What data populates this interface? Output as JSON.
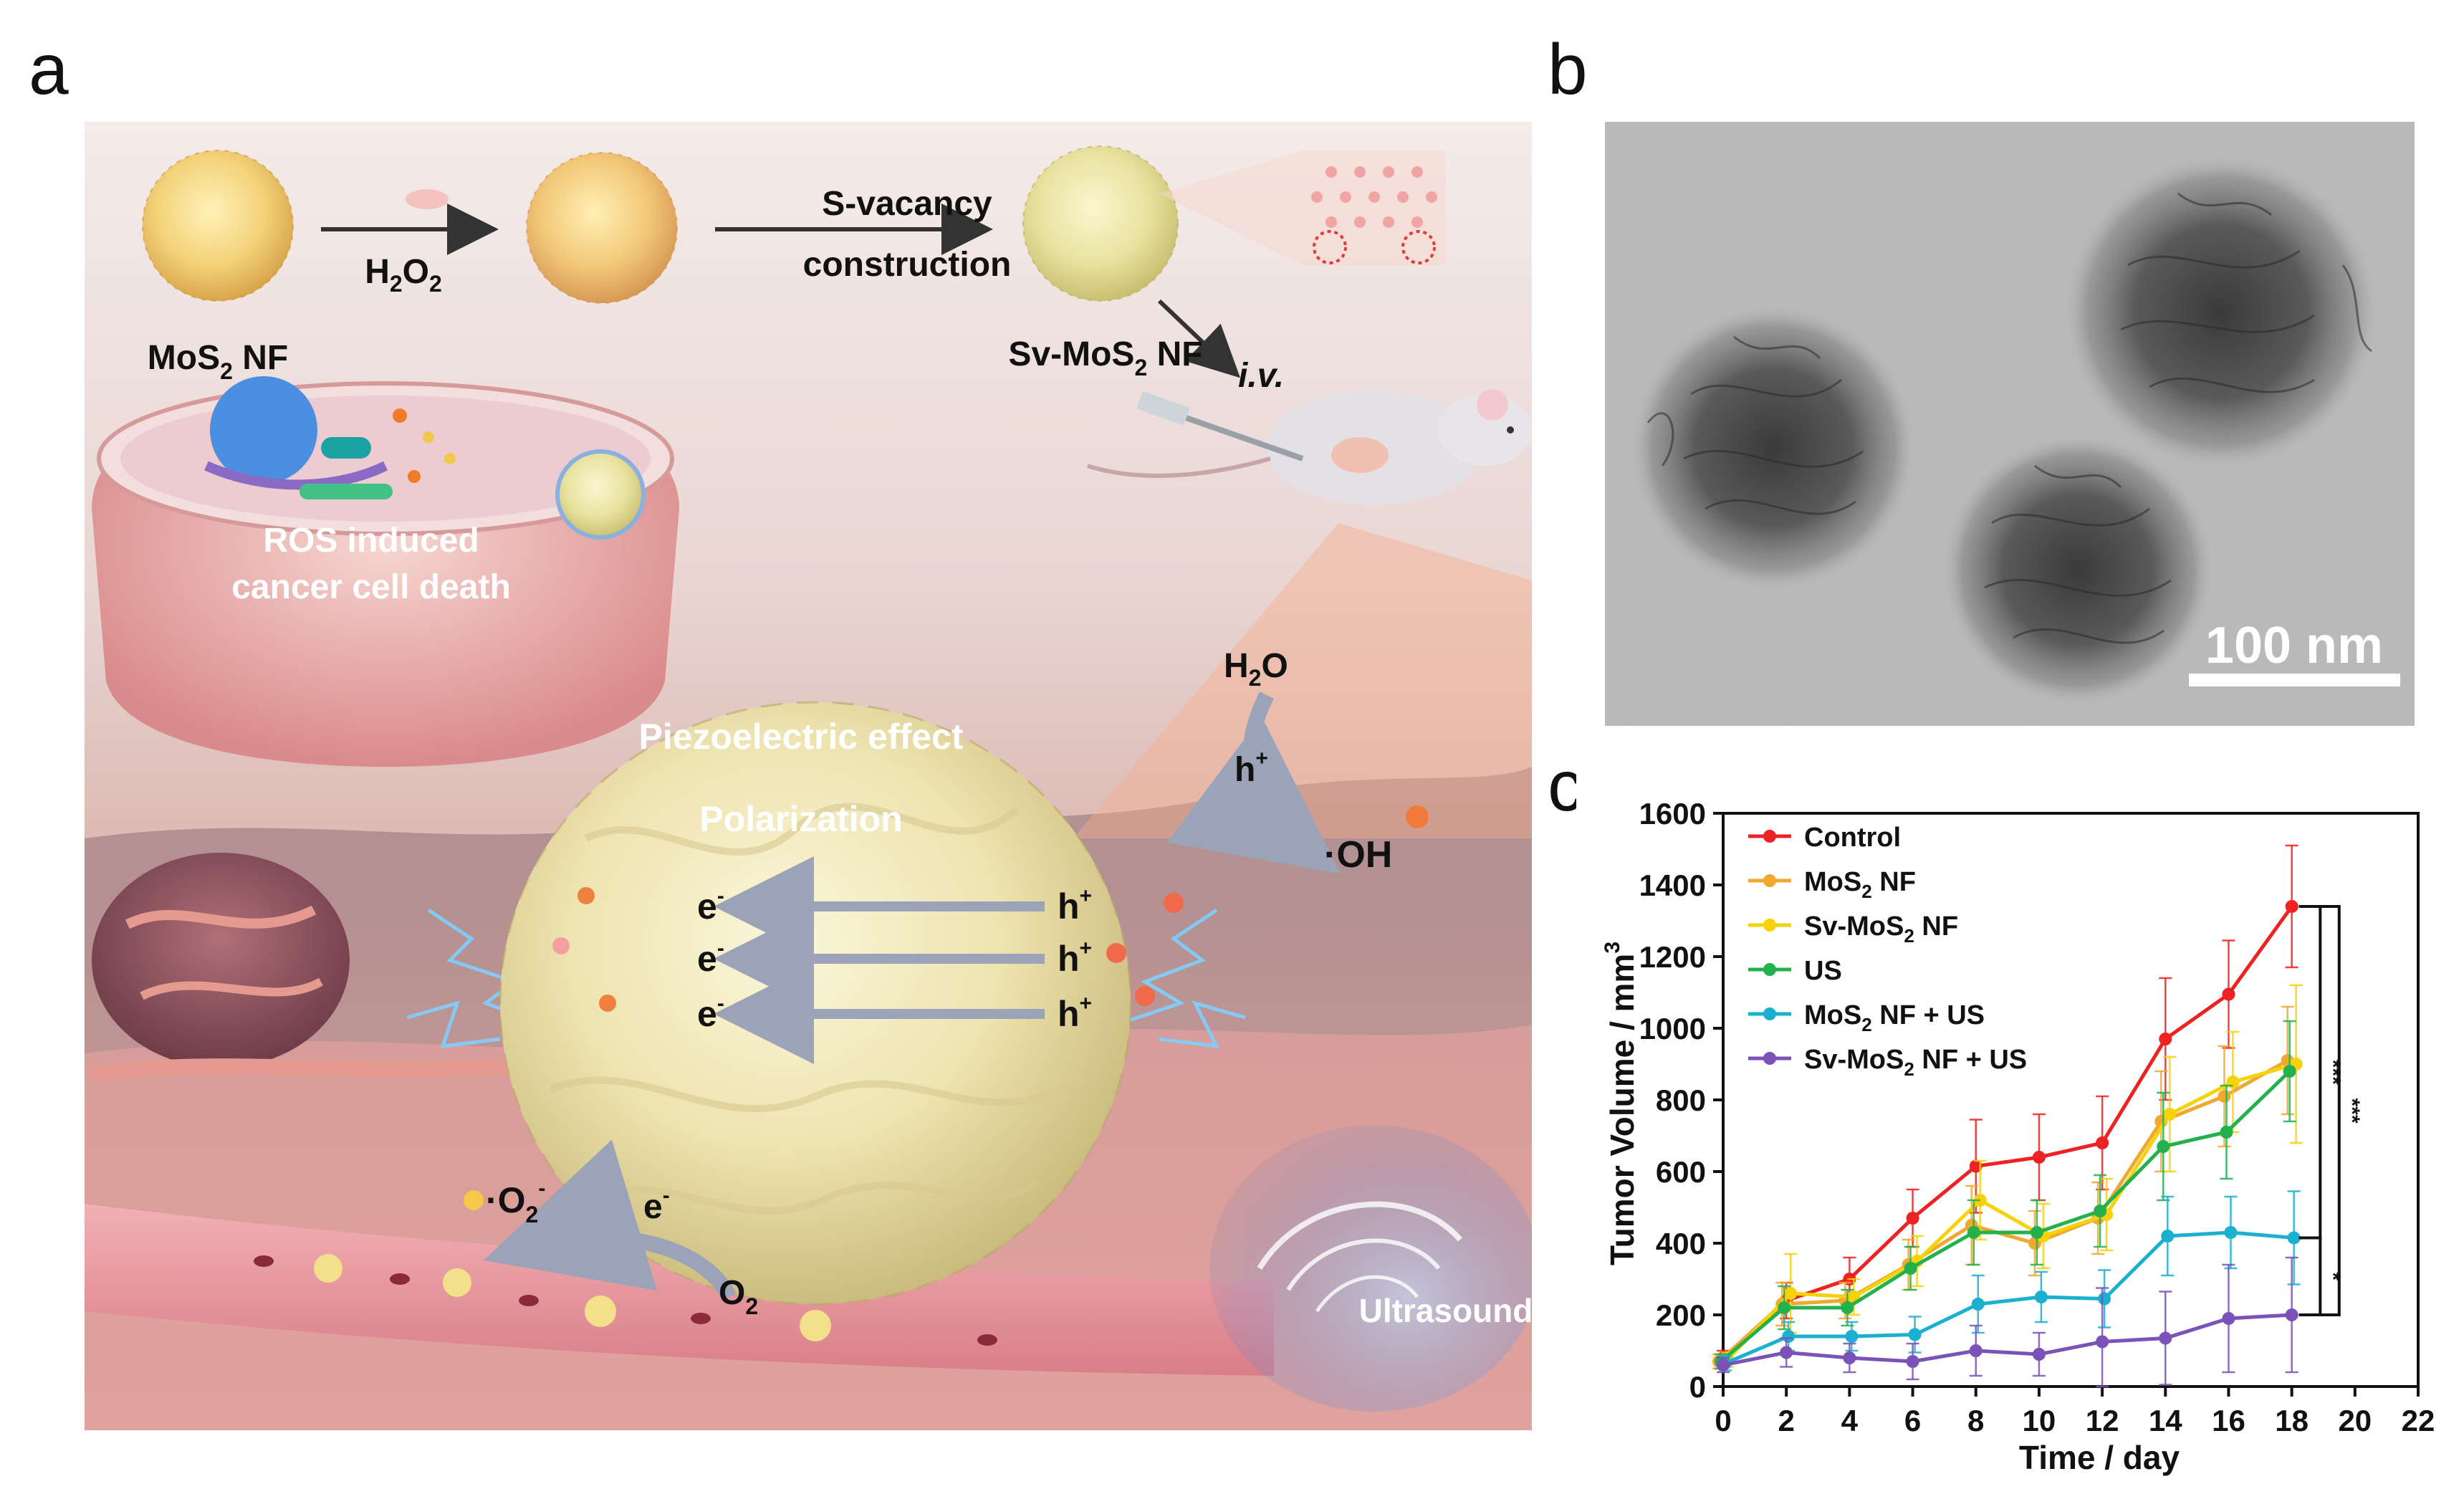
{
  "panels": {
    "a": "a",
    "b": "b",
    "c": "c"
  },
  "scheme": {
    "mos2_nf": "MoS",
    "mos2_nf_sub": "2",
    "mos2_nf_tail": " NF",
    "h2o2": "H",
    "h2o2_sub1": "2",
    "h2o2_mid": "O",
    "h2o2_sub2": "2",
    "svac_line1": "S-vacancy",
    "svac_line2": "construction",
    "sv_mos2": "Sv-MoS",
    "sv_mos2_sub": "2",
    "sv_mos2_tail": " NF",
    "iv": "i.v.",
    "ros_line1": "ROS induced",
    "ros_line2": "cancer cell death",
    "piezo": "Piezoelectric effect",
    "polarization": "Polarization",
    "electron": "e",
    "hole": "h",
    "h2o": "H",
    "h2o_sub": "2",
    "h2o_tail": "O",
    "oh": "·OH",
    "o2": "O",
    "o2_sub": "2",
    "superoxide": "·O",
    "superoxide_sub": "2",
    "ultrasound": "Ultrasound"
  },
  "tem": {
    "scalebar": "100 nm"
  },
  "chart_data": {
    "type": "line",
    "xlabel": "Time / day",
    "ylabel": "Tumor Volume / mm",
    "ylabel_sup": "3",
    "xlim": [
      0,
      22
    ],
    "ylim": [
      0,
      1600
    ],
    "xticks": [
      0,
      2,
      4,
      6,
      8,
      10,
      12,
      14,
      16,
      18,
      20,
      22
    ],
    "yticks": [
      0,
      200,
      400,
      600,
      800,
      1000,
      1200,
      1400,
      1600
    ],
    "x": [
      0,
      2,
      4,
      6,
      8,
      10,
      12,
      14,
      16,
      18
    ],
    "legend_position": "top-left",
    "series": [
      {
        "name": "Control",
        "color": "#ee2222",
        "values": [
          80,
          240,
          300,
          470,
          615,
          640,
          680,
          970,
          1095,
          1340
        ],
        "errors": [
          20,
          50,
          60,
          80,
          130,
          120,
          130,
          170,
          150,
          170
        ]
      },
      {
        "name": "MoS2 NF",
        "label_main": "MoS",
        "label_sub": "2",
        "label_tail": " NF",
        "color": "#f0a830",
        "values": [
          70,
          230,
          240,
          340,
          450,
          400,
          470,
          740,
          810,
          910
        ],
        "errors": [
          20,
          60,
          50,
          70,
          110,
          90,
          100,
          140,
          140,
          150
        ]
      },
      {
        "name": "Sv-MoS2 NF",
        "label_main": "Sv-MoS",
        "label_sub": "2",
        "label_tail": " NF",
        "color": "#f5d20a",
        "values": [
          75,
          260,
          250,
          350,
          520,
          420,
          480,
          760,
          850,
          900
        ],
        "errors": [
          20,
          110,
          50,
          70,
          110,
          90,
          100,
          160,
          140,
          220
        ]
      },
      {
        "name": "US",
        "color": "#22b14c",
        "values": [
          70,
          220,
          220,
          330,
          430,
          430,
          490,
          670,
          710,
          880
        ],
        "errors": [
          20,
          60,
          50,
          60,
          90,
          90,
          100,
          150,
          130,
          140
        ]
      },
      {
        "name": "MoS2 NF + US",
        "label_main": "MoS",
        "label_sub": "2",
        "label_tail": " NF + US",
        "color": "#1cb0d0",
        "values": [
          65,
          140,
          140,
          145,
          230,
          250,
          245,
          420,
          430,
          415
        ],
        "errors": [
          20,
          40,
          40,
          50,
          80,
          70,
          80,
          110,
          100,
          130
        ]
      },
      {
        "name": "Sv-MoS2 NF + US",
        "label_main": "Sv-MoS",
        "label_sub": "2",
        "label_tail": " NF + US",
        "color": "#7a52b8",
        "values": [
          60,
          95,
          80,
          70,
          100,
          90,
          125,
          135,
          190,
          200
        ],
        "errors": [
          20,
          40,
          40,
          50,
          70,
          60,
          150,
          130,
          150,
          160
        ]
      }
    ],
    "significance": [
      {
        "label": "***",
        "from": "Control",
        "to": "Sv-MoS2 NF + US"
      },
      {
        "label": "***",
        "from": "Control",
        "to": "MoS2 NF + US"
      },
      {
        "label": "*",
        "from": "MoS2 NF + US",
        "to": "Sv-MoS2 NF + US"
      }
    ]
  }
}
